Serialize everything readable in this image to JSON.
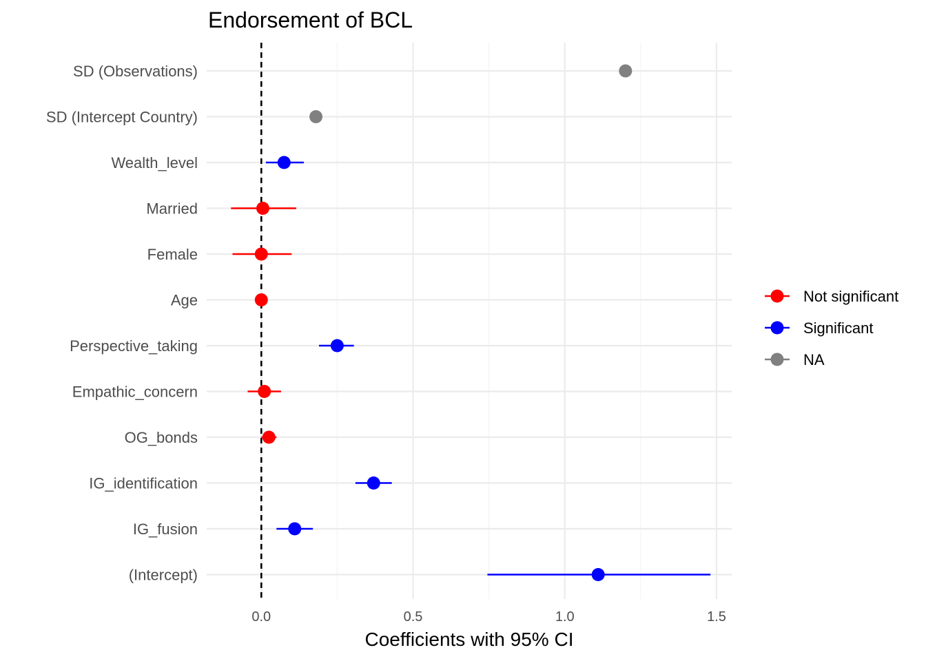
{
  "chart_data": {
    "type": "scatter",
    "title": "Endorsement of BCL",
    "xlabel": "Coefficients with 95% CI",
    "ylabel": "",
    "xlim": [
      -0.18,
      1.55
    ],
    "xticks": [
      0.0,
      0.5,
      1.0,
      1.5
    ],
    "xtick_labels": [
      "0.0",
      "0.5",
      "1.0",
      "1.5"
    ],
    "grid": true,
    "reference_line": {
      "x": 0,
      "style": "dashed"
    },
    "legend": {
      "placement": "right",
      "entries": [
        {
          "label": "Not significant",
          "color": "#ff0000"
        },
        {
          "label": "Significant",
          "color": "#0000ff"
        },
        {
          "label": "NA",
          "color": "#808080"
        }
      ]
    },
    "terms": [
      {
        "label": "SD (Observations)",
        "estimate": 1.2,
        "low": null,
        "high": null,
        "group": "NA"
      },
      {
        "label": "SD (Intercept Country)",
        "estimate": 0.18,
        "low": null,
        "high": null,
        "group": "NA"
      },
      {
        "label": "Wealth_level",
        "estimate": 0.075,
        "low": 0.015,
        "high": 0.14,
        "group": "Significant"
      },
      {
        "label": "Married",
        "estimate": 0.005,
        "low": -0.1,
        "high": 0.115,
        "group": "Not significant"
      },
      {
        "label": "Female",
        "estimate": 0.0,
        "low": -0.095,
        "high": 0.1,
        "group": "Not significant"
      },
      {
        "label": "Age",
        "estimate": 0.0,
        "low": -0.005,
        "high": 0.005,
        "group": "Not significant"
      },
      {
        "label": "Perspective_taking",
        "estimate": 0.25,
        "low": 0.19,
        "high": 0.305,
        "group": "Significant"
      },
      {
        "label": "Empathic_concern",
        "estimate": 0.01,
        "low": -0.045,
        "high": 0.065,
        "group": "Not significant"
      },
      {
        "label": "OG_bonds",
        "estimate": 0.025,
        "low": 0.0,
        "high": 0.05,
        "group": "Not significant"
      },
      {
        "label": "IG_identification",
        "estimate": 0.37,
        "low": 0.31,
        "high": 0.43,
        "group": "Significant"
      },
      {
        "label": "IG_fusion",
        "estimate": 0.11,
        "low": 0.05,
        "high": 0.17,
        "group": "Significant"
      },
      {
        "label": "(Intercept)",
        "estimate": 1.11,
        "low": 0.745,
        "high": 1.48,
        "group": "Significant"
      }
    ]
  }
}
